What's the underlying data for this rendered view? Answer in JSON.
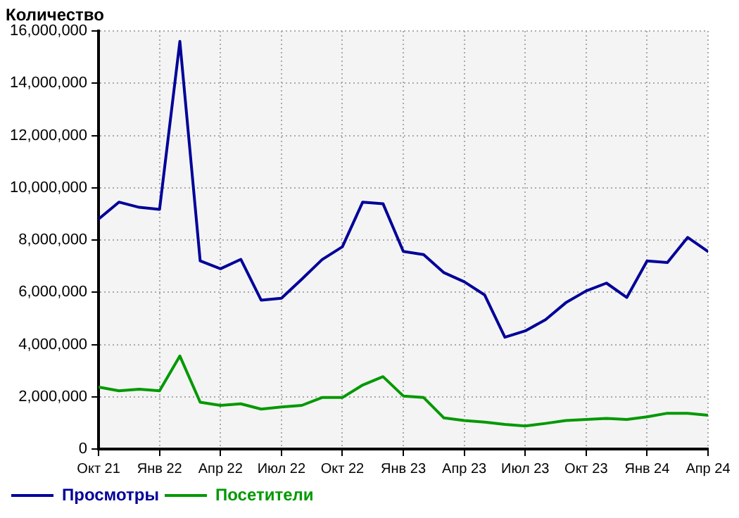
{
  "chart_data": {
    "type": "line",
    "ylabel": "Количество",
    "x": [
      "2021-10",
      "2021-11",
      "2021-12",
      "2022-01",
      "2022-02",
      "2022-03",
      "2022-04",
      "2022-05",
      "2022-06",
      "2022-07",
      "2022-08",
      "2022-09",
      "2022-10",
      "2022-11",
      "2022-12",
      "2023-01",
      "2023-02",
      "2023-03",
      "2023-04",
      "2023-05",
      "2023-06",
      "2023-07",
      "2023-08",
      "2023-09",
      "2023-10",
      "2023-11",
      "2023-12",
      "2024-01",
      "2024-02",
      "2024-03",
      "2024-04"
    ],
    "series": [
      {
        "name": "Просмотры",
        "color": "#000099",
        "values": [
          8800000,
          9450000,
          9250000,
          9170000,
          15600000,
          7200000,
          6900000,
          7260000,
          5700000,
          5770000,
          6500000,
          7250000,
          7740000,
          9450000,
          9390000,
          7560000,
          7440000,
          6750000,
          6400000,
          5900000,
          4280000,
          4520000,
          4950000,
          5600000,
          6050000,
          6350000,
          5800000,
          7200000,
          7140000,
          8100000,
          7560000
        ]
      },
      {
        "name": "Посетители",
        "color": "#009900",
        "values": [
          2370000,
          2230000,
          2290000,
          2230000,
          3560000,
          1790000,
          1670000,
          1730000,
          1530000,
          1610000,
          1670000,
          1970000,
          1970000,
          2450000,
          2770000,
          2030000,
          1970000,
          1190000,
          1090000,
          1030000,
          940000,
          880000,
          980000,
          1090000,
          1130000,
          1170000,
          1130000,
          1230000,
          1370000,
          1370000,
          1290000
        ]
      }
    ],
    "xlim": [
      "2021-10",
      "2024-04"
    ],
    "xticks": [
      {
        "value": "2021-10",
        "label": "Окт 21"
      },
      {
        "value": "2022-01",
        "label": "Янв 22"
      },
      {
        "value": "2022-04",
        "label": "Апр 22"
      },
      {
        "value": "2022-07",
        "label": "Июл 22"
      },
      {
        "value": "2022-10",
        "label": "Окт 22"
      },
      {
        "value": "2023-01",
        "label": "Янв 23"
      },
      {
        "value": "2023-04",
        "label": "Апр 23"
      },
      {
        "value": "2023-07",
        "label": "Июл 23"
      },
      {
        "value": "2023-10",
        "label": "Окт 23"
      },
      {
        "value": "2024-01",
        "label": "Янв 24"
      },
      {
        "value": "2024-04",
        "label": "Апр 24"
      }
    ],
    "ylim": [
      0,
      16000000
    ],
    "yticks": [
      0,
      {
        "value": 2000000,
        "label": "2,000,000"
      },
      {
        "value": 4000000,
        "label": "4,000,000"
      },
      {
        "value": 6000000,
        "label": "6,000,000"
      },
      {
        "value": 8000000,
        "label": "8,000,000"
      },
      {
        "value": 10000000,
        "label": "10,000,000"
      },
      {
        "value": 12000000,
        "label": "12,000,000"
      },
      {
        "value": 14000000,
        "label": "14,000,000"
      },
      {
        "value": 16000000,
        "label": "16,000,000"
      }
    ],
    "grid": true,
    "legend": "bottom left",
    "marker": "none",
    "line_style": "solid"
  }
}
